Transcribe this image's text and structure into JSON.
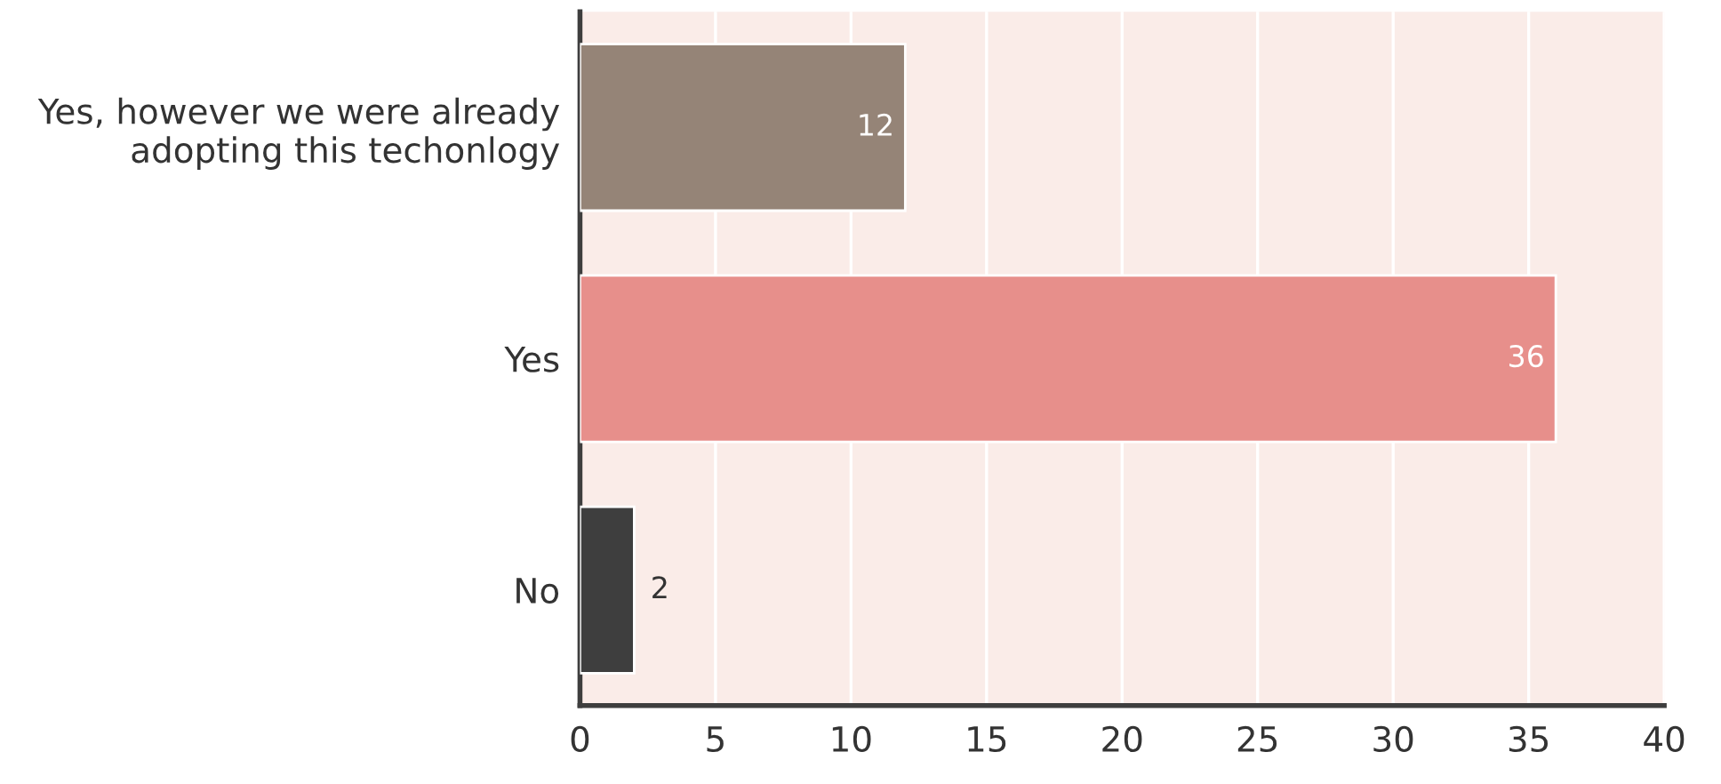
{
  "chart_data": {
    "type": "bar",
    "orientation": "horizontal",
    "categories": [
      "Yes, however we were already\nadopting this techonlogy",
      "Yes",
      "No"
    ],
    "values": [
      12,
      36,
      2
    ],
    "colors": [
      "#958477",
      "#e78f8b",
      "#3e3e3e"
    ],
    "xlim": [
      0,
      40
    ],
    "xticks": [
      0,
      5,
      10,
      15,
      20,
      25,
      30,
      35,
      40
    ],
    "grid": "x",
    "data_labels": true
  }
}
